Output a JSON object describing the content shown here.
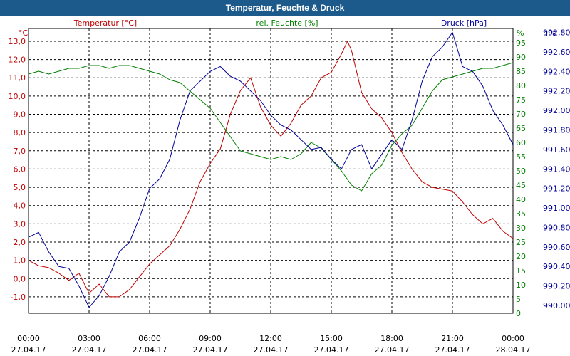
{
  "window": {
    "title": "Temperatur, Feuchte & Druck"
  },
  "chart_data": {
    "type": "line",
    "title": "Temperatur, Feuchte & Druck",
    "colors": {
      "temperature": "#c00000",
      "humidity": "#008000",
      "pressure": "#000099",
      "grid": "#000000",
      "titlebar": "#1c5a8c"
    },
    "x_ticks": [
      {
        "time": "00:00",
        "date": "27.04.17",
        "h": 0
      },
      {
        "time": "03:00",
        "date": "27.04.17",
        "h": 3
      },
      {
        "time": "06:00",
        "date": "27.04.17",
        "h": 6
      },
      {
        "time": "09:00",
        "date": "27.04.17",
        "h": 9
      },
      {
        "time": "12:00",
        "date": "27.04.17",
        "h": 12
      },
      {
        "time": "15:00",
        "date": "27.04.17",
        "h": 15
      },
      {
        "time": "18:00",
        "date": "27.04.17",
        "h": 18
      },
      {
        "time": "21:00",
        "date": "27.04.17",
        "h": 21
      },
      {
        "time": "00:00",
        "date": "28.04.17",
        "h": 24
      }
    ],
    "axes": {
      "temperature": {
        "label": "Temperatur [°C]",
        "unit": "°C",
        "range": [
          -1.9,
          13.7
        ],
        "ticks": [
          "-1,0",
          "0,0",
          "1,0",
          "2,0",
          "3,0",
          "4,0",
          "5,0",
          "6,0",
          "7,0",
          "8,0",
          "9,0",
          "10,0",
          "11,0",
          "12,0",
          "13,0"
        ],
        "tick_values": [
          -1,
          0,
          1,
          2,
          3,
          4,
          5,
          6,
          7,
          8,
          9,
          10,
          11,
          12,
          13
        ]
      },
      "humidity": {
        "label": "rel. Feuchte [%]",
        "unit": "%",
        "range": [
          0,
          100
        ],
        "ticks": [
          "0",
          "5",
          "10",
          "15",
          "20",
          "25",
          "30",
          "35",
          "40",
          "45",
          "50",
          "55",
          "60",
          "65",
          "70",
          "75",
          "80",
          "85",
          "90",
          "95"
        ],
        "tick_values": [
          0,
          5,
          10,
          15,
          20,
          25,
          30,
          35,
          40,
          45,
          50,
          55,
          60,
          65,
          70,
          75,
          80,
          85,
          90,
          95
        ]
      },
      "pressure": {
        "label": "Druck [hPa]",
        "unit": "hPa",
        "range": [
          989.92,
          992.84
        ],
        "ticks": [
          "990,00",
          "990,20",
          "990,40",
          "990,60",
          "990,80",
          "991,00",
          "991,20",
          "991,40",
          "991,60",
          "991,80",
          "992,00",
          "992,20",
          "992,40",
          "992,60",
          "992,80"
        ],
        "tick_values": [
          990.0,
          990.2,
          990.4,
          990.6,
          990.8,
          991.0,
          991.2,
          991.4,
          991.6,
          991.8,
          992.0,
          992.2,
          992.4,
          992.6,
          992.8
        ]
      }
    },
    "series": [
      {
        "name": "Temperatur",
        "axis": "temperature",
        "color": "#c00000",
        "x": [
          0,
          0.5,
          1.0,
          1.5,
          2.0,
          2.5,
          3.0,
          3.5,
          4.0,
          4.5,
          5.0,
          5.5,
          6.0,
          6.5,
          7.0,
          7.5,
          8.0,
          8.5,
          9.0,
          9.5,
          10.0,
          10.5,
          11.0,
          11.5,
          12.0,
          12.5,
          13.0,
          13.5,
          14.0,
          14.5,
          15.0,
          15.5,
          15.8,
          16.0,
          16.5,
          17.0,
          17.5,
          18.0,
          18.5,
          19.0,
          19.5,
          20.0,
          20.5,
          21.0,
          21.5,
          22.0,
          22.5,
          23.0,
          23.5,
          24.0
        ],
        "y": [
          1.0,
          0.7,
          0.6,
          0.3,
          -0.1,
          0.3,
          -0.8,
          -0.3,
          -1.0,
          -1.0,
          -0.6,
          0.1,
          0.8,
          1.3,
          1.8,
          2.7,
          3.8,
          5.3,
          6.3,
          7.1,
          9.0,
          10.3,
          11.0,
          9.4,
          8.4,
          7.8,
          8.5,
          9.5,
          10.0,
          11.0,
          11.3,
          12.3,
          13.0,
          12.5,
          10.2,
          9.3,
          8.8,
          8.0,
          6.9,
          6.0,
          5.3,
          5.0,
          4.9,
          4.8,
          4.2,
          3.5,
          3.0,
          3.3,
          2.6,
          2.2
        ]
      },
      {
        "name": "rel. Feuchte",
        "axis": "humidity",
        "color": "#008000",
        "x": [
          0,
          0.5,
          1.0,
          1.5,
          2.0,
          2.5,
          3.0,
          3.5,
          4.0,
          4.5,
          5.0,
          5.5,
          6.0,
          6.5,
          7.0,
          7.5,
          8.0,
          8.5,
          9.0,
          9.5,
          10.0,
          10.5,
          11.0,
          11.5,
          12.0,
          12.5,
          13.0,
          13.5,
          14.0,
          14.5,
          15.0,
          15.5,
          16.0,
          16.5,
          17.0,
          17.5,
          18.0,
          18.5,
          19.0,
          19.5,
          20.0,
          20.5,
          21.0,
          21.5,
          22.0,
          22.5,
          23.0,
          23.5,
          24.0
        ],
        "y": [
          84,
          85,
          84,
          85,
          86,
          86,
          87,
          87,
          86,
          87,
          87,
          86,
          85,
          84,
          82,
          81,
          78,
          75,
          72,
          67,
          62,
          57,
          56,
          55,
          54,
          55,
          54,
          56,
          60,
          58,
          54,
          50,
          45,
          43,
          49,
          52,
          59,
          63,
          66,
          72,
          78,
          82,
          83,
          84,
          85,
          86,
          86,
          87,
          88
        ]
      },
      {
        "name": "Druck",
        "axis": "pressure",
        "color": "#000099",
        "x": [
          0,
          0.5,
          1.0,
          1.5,
          2.0,
          2.5,
          3.0,
          3.5,
          4.0,
          4.5,
          5.0,
          5.5,
          6.0,
          6.5,
          7.0,
          7.5,
          8.0,
          8.5,
          9.0,
          9.5,
          10.0,
          10.5,
          11.0,
          11.5,
          12.0,
          12.5,
          13.0,
          13.5,
          14.0,
          14.5,
          15.0,
          15.5,
          16.0,
          16.5,
          17.0,
          17.5,
          18.0,
          18.5,
          19.0,
          19.5,
          20.0,
          20.5,
          21.0,
          21.5,
          22.0,
          22.5,
          23.0,
          23.5,
          24.0
        ],
        "y": [
          990.7,
          990.75,
          990.55,
          990.4,
          990.38,
          990.2,
          989.98,
          990.1,
          990.3,
          990.55,
          990.65,
          990.9,
          991.2,
          991.3,
          991.5,
          991.9,
          992.2,
          992.3,
          992.4,
          992.45,
          992.35,
          992.3,
          992.2,
          992.1,
          991.95,
          991.85,
          991.8,
          991.7,
          991.6,
          991.62,
          991.5,
          991.4,
          991.6,
          991.65,
          991.4,
          991.55,
          991.7,
          991.6,
          991.9,
          992.3,
          992.55,
          992.65,
          992.8,
          992.45,
          992.4,
          992.25,
          992.0,
          991.85,
          991.65
        ]
      }
    ]
  }
}
